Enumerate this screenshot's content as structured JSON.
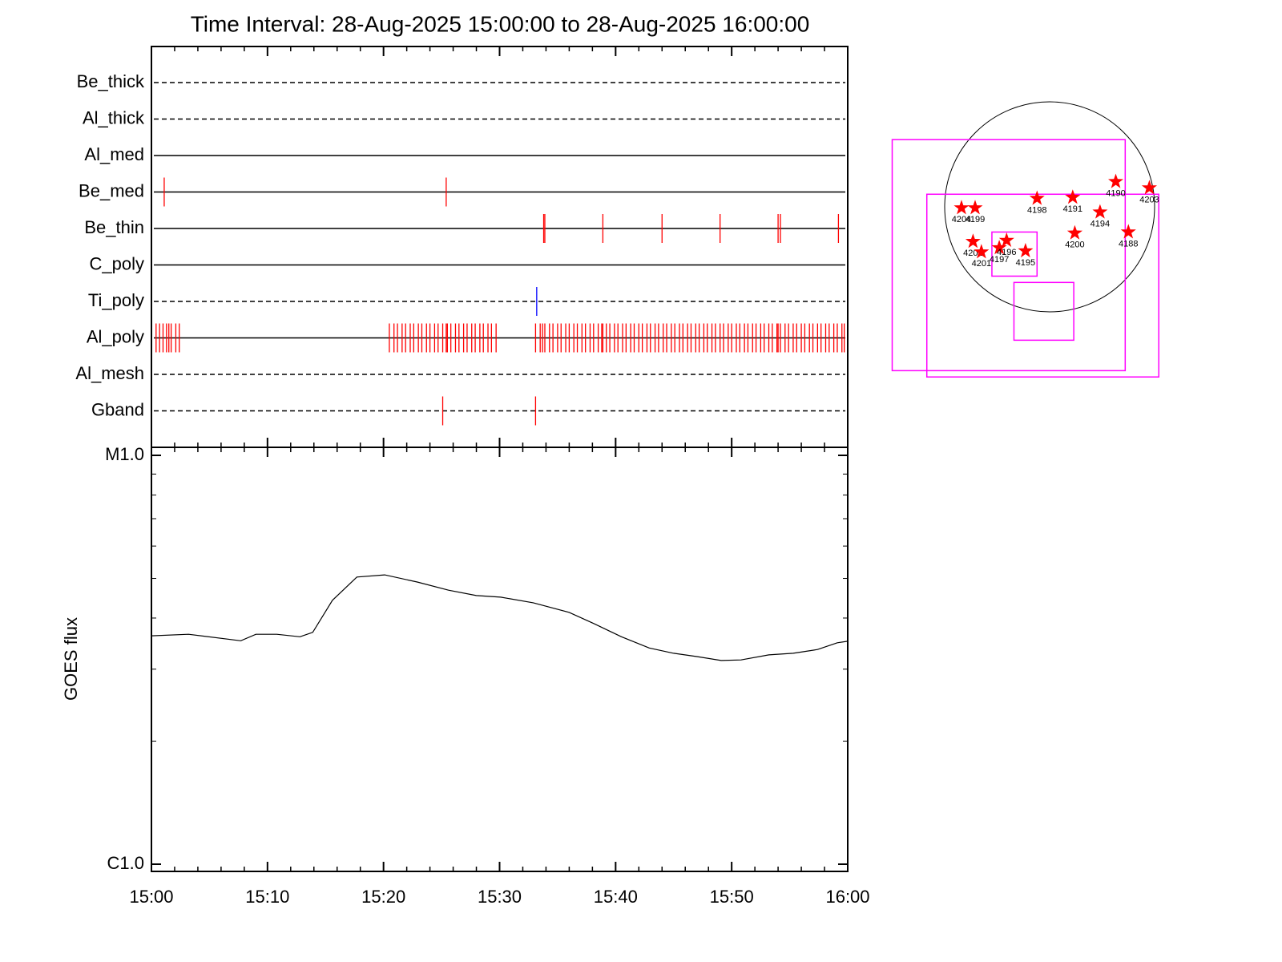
{
  "chart_data": [
    {
      "type": "timeline",
      "title": "Time Interval: 28-Aug-2025 15:00:00 to 28-Aug-2025 16:00:00",
      "xlim": [
        0,
        60
      ],
      "xticks": [
        0,
        10,
        20,
        30,
        40,
        50,
        60
      ],
      "xminorticks": [
        2,
        4,
        6,
        8,
        12,
        14,
        16,
        18,
        22,
        24,
        26,
        28,
        32,
        34,
        36,
        38,
        42,
        44,
        46,
        48,
        52,
        54,
        56,
        58
      ],
      "series": [
        {
          "name": "Be_thick",
          "line": "dashed",
          "color": "#ff0000",
          "values": []
        },
        {
          "name": "Al_thick",
          "line": "dashed",
          "color": "#ff0000",
          "values": []
        },
        {
          "name": "Al_med",
          "line": "solid",
          "color": "#ff0000",
          "values": []
        },
        {
          "name": "Be_med",
          "line": "solid",
          "color": "#ff0000",
          "values": [
            1.1,
            25.4
          ]
        },
        {
          "name": "Be_thin",
          "line": "solid",
          "color": "#ff0000",
          "values": [
            33.8,
            33.9,
            38.9,
            44.0,
            49.0,
            54.0,
            54.2,
            59.2
          ]
        },
        {
          "name": "C_poly",
          "line": "solid",
          "color": "#ff0000",
          "values": []
        },
        {
          "name": "Ti_poly",
          "line": "dashed",
          "color": "#0000ff",
          "values": [
            33.2
          ]
        },
        {
          "name": "Al_poly",
          "line": "solid",
          "color": "#ff0000",
          "values": [
            0.4,
            0.7,
            1.0,
            1.3,
            1.5,
            1.7,
            2.1,
            2.4,
            20.5,
            20.9,
            21.2,
            21.6,
            21.9,
            22.3,
            22.6,
            23.0,
            23.3,
            23.7,
            24.0,
            24.4,
            24.7,
            25.1,
            25.4,
            25.5,
            25.8,
            26.2,
            26.5,
            26.9,
            27.2,
            27.6,
            27.9,
            28.3,
            28.6,
            29.0,
            29.3,
            29.7,
            33.1,
            33.5,
            33.7,
            33.9,
            34.3,
            34.6,
            35.0,
            35.3,
            35.7,
            36.0,
            36.4,
            36.7,
            37.1,
            37.4,
            37.8,
            38.1,
            38.5,
            38.8,
            38.9,
            39.2,
            39.5,
            39.9,
            40.2,
            40.6,
            40.9,
            41.3,
            41.6,
            42.0,
            42.3,
            42.7,
            43.0,
            43.4,
            43.7,
            44.1,
            44.4,
            44.8,
            45.1,
            45.5,
            45.8,
            46.2,
            46.5,
            46.9,
            47.2,
            47.6,
            47.9,
            48.3,
            48.6,
            49.0,
            49.3,
            49.7,
            50.0,
            50.4,
            50.7,
            51.1,
            51.4,
            51.8,
            52.1,
            52.5,
            52.8,
            53.2,
            53.5,
            53.9,
            54.0,
            54.2,
            54.6,
            54.9,
            55.3,
            55.6,
            56.0,
            56.3,
            56.7,
            57.0,
            57.4,
            57.7,
            58.1,
            58.4,
            58.8,
            59.1,
            59.5,
            59.7
          ]
        },
        {
          "name": "Al_mesh",
          "line": "dashed",
          "color": "#ff0000",
          "values": []
        },
        {
          "name": "Gband",
          "line": "dashed",
          "color": "#ff0000",
          "values": [
            25.1,
            33.1
          ]
        }
      ]
    },
    {
      "type": "line",
      "ylabel": "GOES flux",
      "log": true,
      "xlim": [
        0,
        60
      ],
      "xticks": [
        {
          "value": 0,
          "label": "15:00"
        },
        {
          "value": 10,
          "label": "15:10"
        },
        {
          "value": 20,
          "label": "15:20"
        },
        {
          "value": 30,
          "label": "15:30"
        },
        {
          "value": 40,
          "label": "15:40"
        },
        {
          "value": 50,
          "label": "15:50"
        },
        {
          "value": 60,
          "label": "16:00"
        }
      ],
      "xminorticks": [
        2,
        4,
        6,
        8,
        12,
        14,
        16,
        18,
        22,
        24,
        26,
        28,
        32,
        34,
        36,
        38,
        42,
        44,
        46,
        48,
        52,
        54,
        56,
        58
      ],
      "ylim": [
        1e-06,
        1e-05
      ],
      "yticks": [
        {
          "value": 1e-06,
          "label": "C1.0"
        },
        {
          "value": 1e-05,
          "label": "M1.0"
        }
      ],
      "yminorticks": [
        2e-06,
        3e-06,
        4e-06,
        5e-06,
        6e-06,
        7e-06,
        8e-06,
        9e-06
      ],
      "x": [
        0,
        3.2,
        7.7,
        9.0,
        10.8,
        12.8,
        13.9,
        15.6,
        17.7,
        20.1,
        22.9,
        25.6,
        28.0,
        30.1,
        32.9,
        36.0,
        38.1,
        40.5,
        42.9,
        45.0,
        47.0,
        49.1,
        50.8,
        53.2,
        55.3,
        57.4,
        59.1,
        60
      ],
      "series": [
        {
          "color": "#000000",
          "values": [
            3.62e-06,
            3.65e-06,
            3.52e-06,
            3.65e-06,
            3.65e-06,
            3.6e-06,
            3.69e-06,
            4.42e-06,
            5.04e-06,
            5.1e-06,
            4.9e-06,
            4.68e-06,
            4.54e-06,
            4.5e-06,
            4.36e-06,
            4.13e-06,
            3.88e-06,
            3.6e-06,
            3.38e-06,
            3.28e-06,
            3.22e-06,
            3.15e-06,
            3.16e-06,
            3.25e-06,
            3.28e-06,
            3.35e-06,
            3.48e-06,
            3.51e-06
          ]
        }
      ]
    },
    {
      "type": "map",
      "color": "#ff0000",
      "box_color": "#ff00ff",
      "x": [
        -0.84,
        -0.71,
        -0.12,
        0.22,
        0.63,
        0.95,
        0.48,
        0.75,
        0.24,
        -0.73,
        -0.65,
        -0.48,
        -0.41,
        -0.23
      ],
      "y": [
        -0.01,
        -0.01,
        0.08,
        0.09,
        0.24,
        0.18,
        -0.05,
        -0.24,
        -0.25,
        -0.33,
        -0.43,
        -0.39,
        -0.32,
        -0.42
      ],
      "labels": [
        "4204",
        "4199",
        "4198",
        "4191",
        "4190",
        "4203",
        "4194",
        "4188",
        "4200",
        "4202",
        "4201",
        "4197",
        "4196",
        "4195"
      ],
      "boxes": [
        [
          -1.5,
          0.64,
          0.72,
          -1.56
        ],
        [
          -1.17,
          0.12,
          1.04,
          -1.62
        ],
        [
          -0.55,
          -0.24,
          -0.12,
          -0.66
        ],
        [
          -0.34,
          -0.72,
          0.23,
          -1.27
        ]
      ]
    }
  ]
}
